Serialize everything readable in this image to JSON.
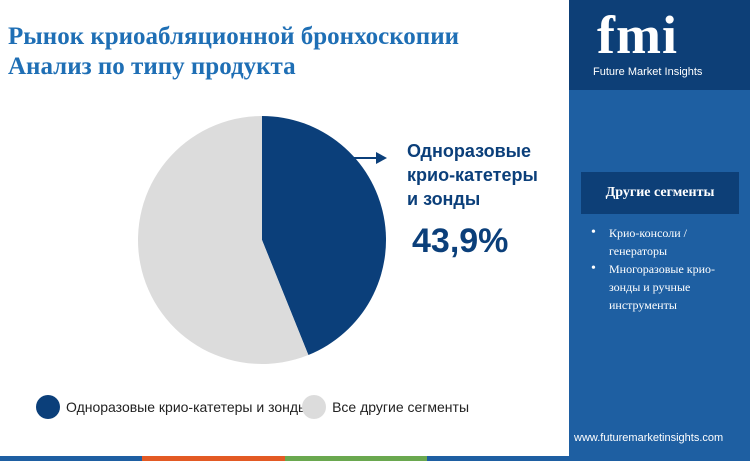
{
  "title": {
    "line1": "Рынок криоабляционной бронхоскопии",
    "line2": "Анализ по типу продукта"
  },
  "chart_data": {
    "type": "pie",
    "categories": [
      "Одноразовые крио-катетеры и зонды",
      "Все другие сегменты"
    ],
    "values": [
      43.9,
      56.1
    ],
    "colors": [
      "#0b3f7a",
      "#dcdcdc"
    ],
    "legend_position": "bottom",
    "callout": {
      "lines": [
        "Одноразовые",
        "крио-катетеры",
        "и зонды"
      ],
      "value_label": "43,9%"
    }
  },
  "legend": [
    {
      "label": "Одноразовые крио-катетеры и зонды",
      "color": "#0b3f7a"
    },
    {
      "label": "Все другие сегменты",
      "color": "#dcdcdc"
    }
  ],
  "brand": {
    "logo": "fmi",
    "name": "Future Market Insights",
    "url": "www.futuremarketinsights.com"
  },
  "other_segments": {
    "title": "Другие сегменты",
    "items": [
      "Крио-консоли / генераторы",
      "Многоразовые крио-зонды и ручные инструменты"
    ]
  },
  "colors": {
    "accent_dark": "#0d3f77",
    "panel": "#1e5fa2",
    "title": "#1f6fb5",
    "bottom_bar": [
      "#1e5fa2",
      "#e35a24",
      "#6aa84f",
      "#1e5fa2"
    ]
  }
}
